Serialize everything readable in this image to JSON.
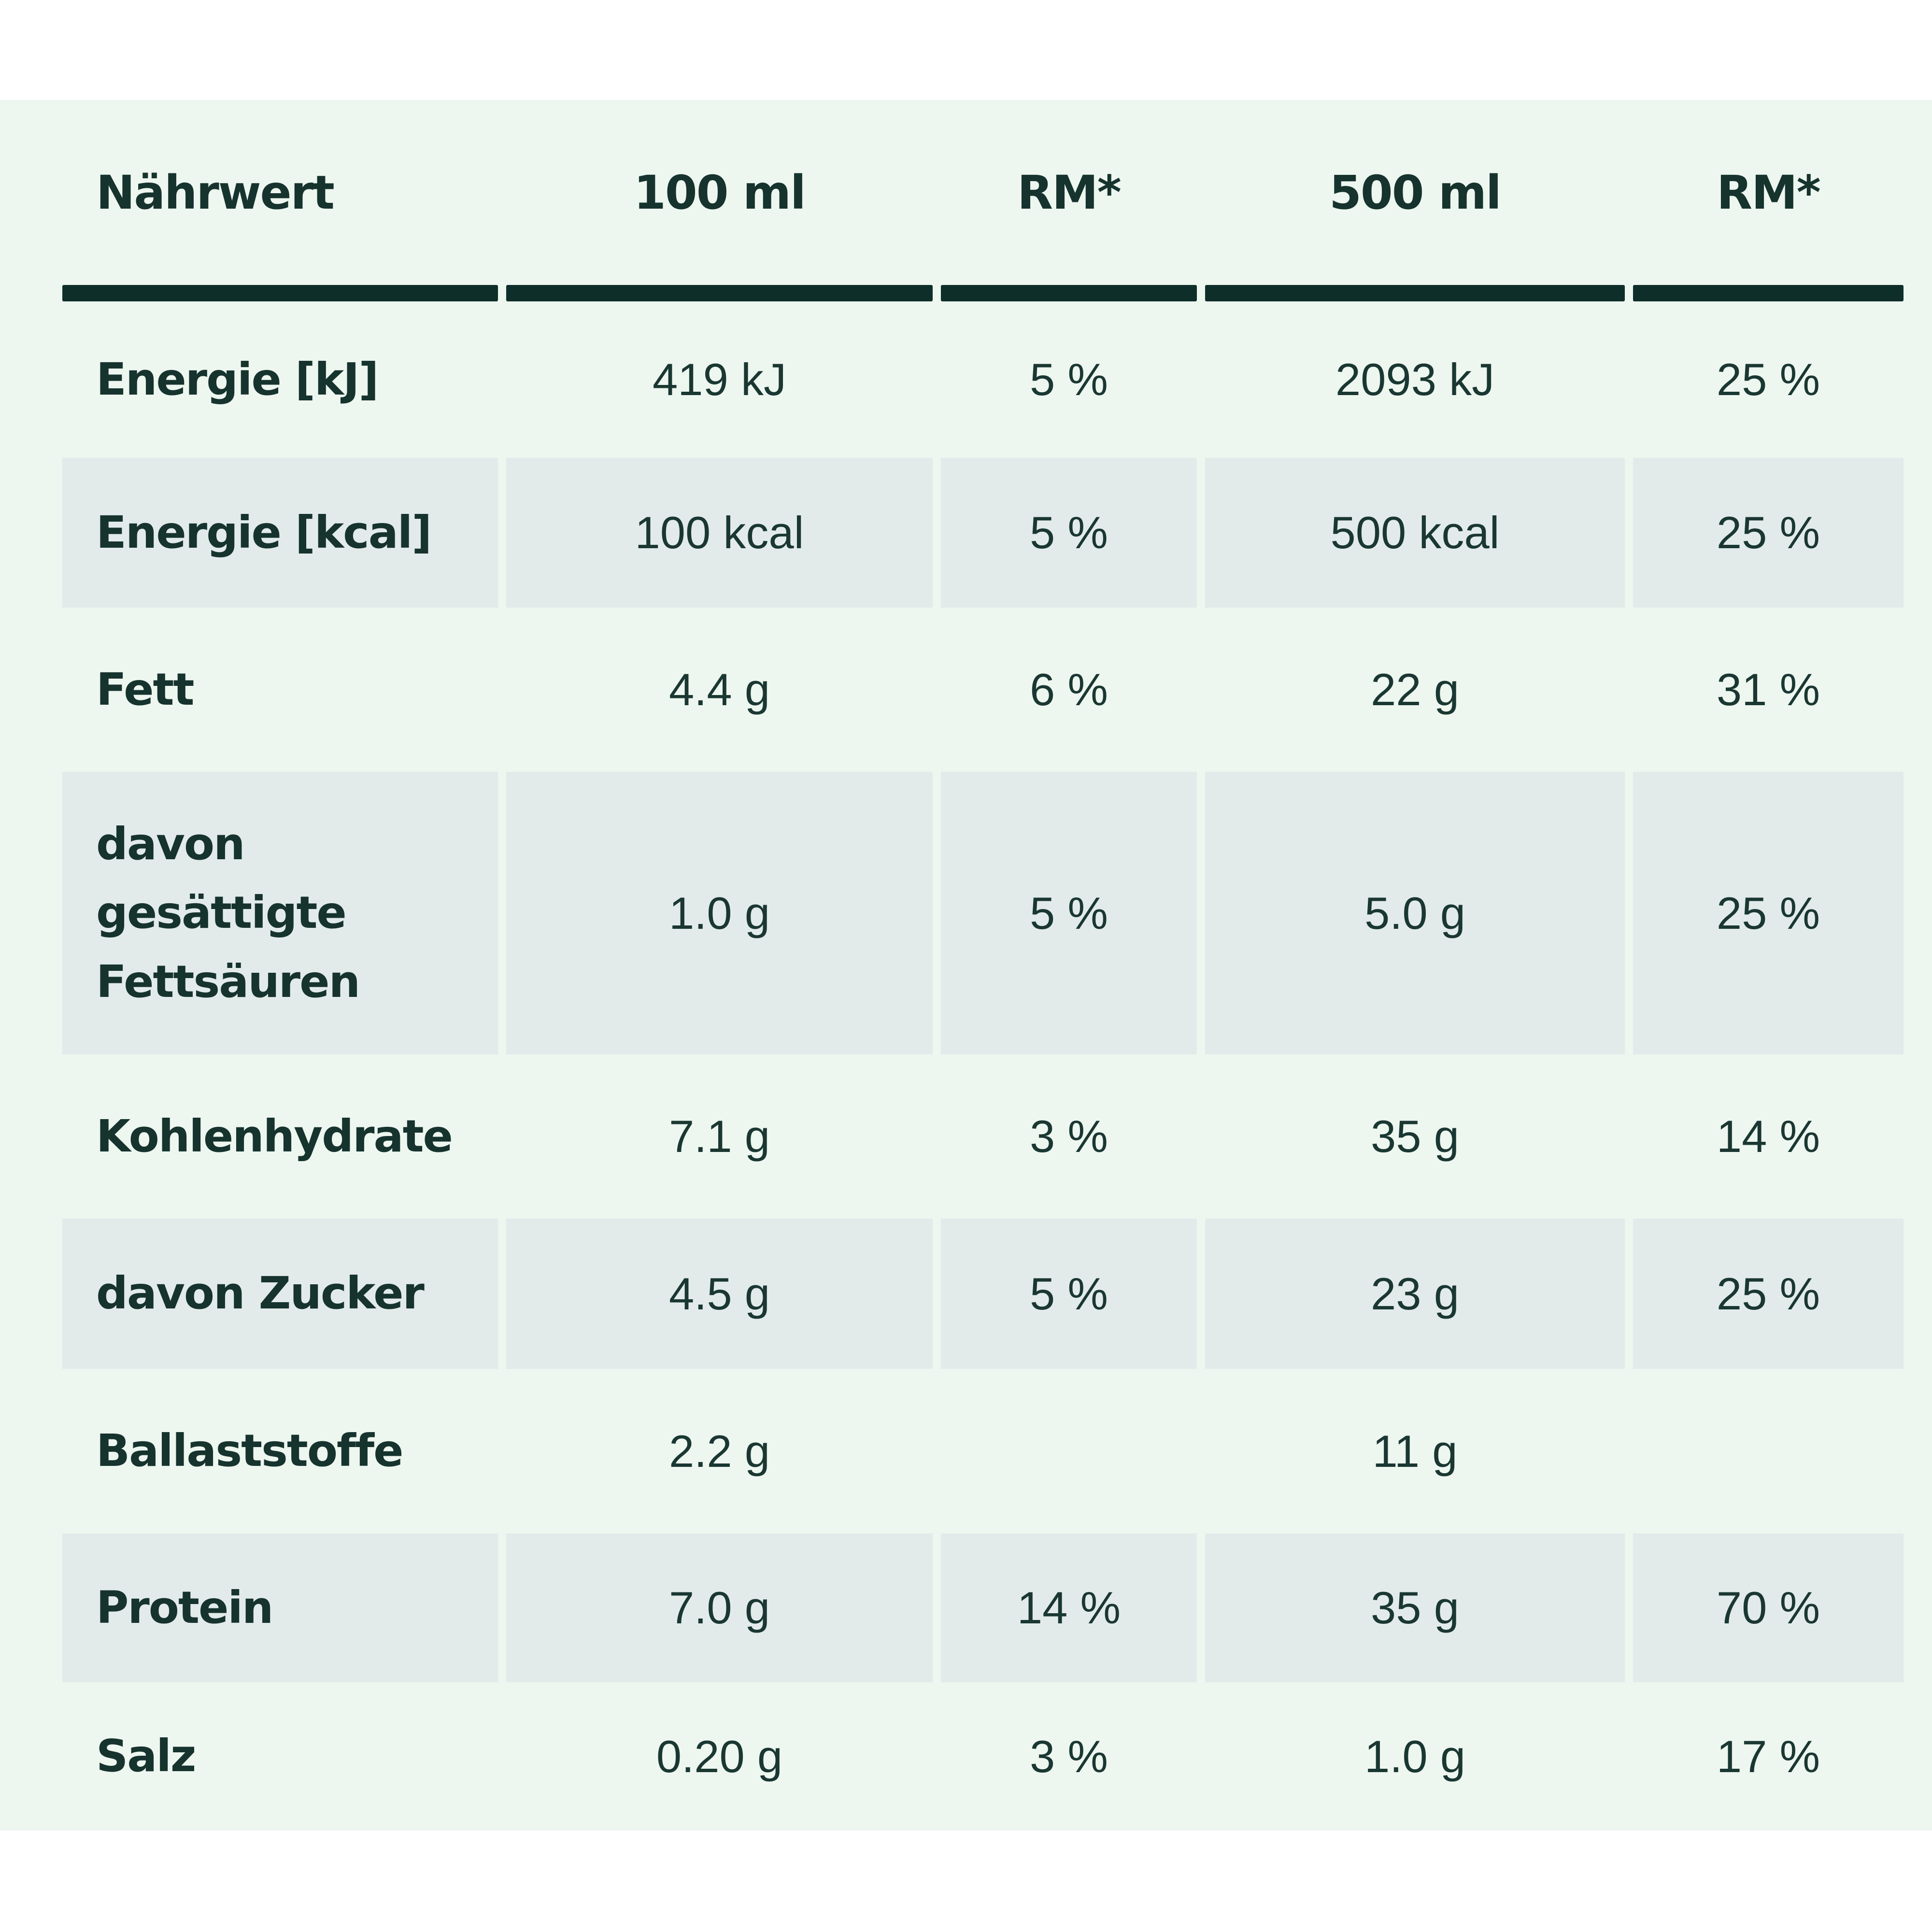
{
  "colors": {
    "page_background": "#ffffff",
    "panel_background": "#edf6ef",
    "shaded_cell_background": "#e2ebea",
    "divider_bar": "#0e2e29",
    "text": "#16332e"
  },
  "table": {
    "header": [
      "Nährwert",
      "100 ml",
      "RM*",
      "500 ml",
      "RM*"
    ],
    "rows": [
      {
        "label": "Energie [kJ]",
        "cells": [
          "419 kJ",
          "5 %",
          "2093 kJ",
          "25 %"
        ],
        "shaded": false
      },
      {
        "label": "Energie [kcal]",
        "cells": [
          "100 kcal",
          "5 %",
          "500 kcal",
          "25 %"
        ],
        "shaded": true
      },
      {
        "label": "Fett",
        "cells": [
          "4.4 g",
          "6 %",
          "22 g",
          "31 %"
        ],
        "shaded": false
      },
      {
        "label": "davon gesättigte Fettsäuren",
        "cells": [
          "1.0 g",
          "5 %",
          "5.0 g",
          "25 %"
        ],
        "shaded": true
      },
      {
        "label": "Kohlenhydrate",
        "cells": [
          "7.1 g",
          "3 %",
          "35 g",
          "14 %"
        ],
        "shaded": false
      },
      {
        "label": "davon Zucker",
        "cells": [
          "4.5 g",
          "5 %",
          "23 g",
          "25 %"
        ],
        "shaded": true
      },
      {
        "label": "Ballaststoffe",
        "cells": [
          "2.2 g",
          "",
          "11 g",
          ""
        ],
        "shaded": false
      },
      {
        "label": "Protein",
        "cells": [
          "7.0 g",
          "14 %",
          "35 g",
          "70 %"
        ],
        "shaded": true
      },
      {
        "label": "Salz",
        "cells": [
          "0.20 g",
          "3 %",
          "1.0 g",
          "17 %"
        ],
        "shaded": false
      }
    ]
  }
}
